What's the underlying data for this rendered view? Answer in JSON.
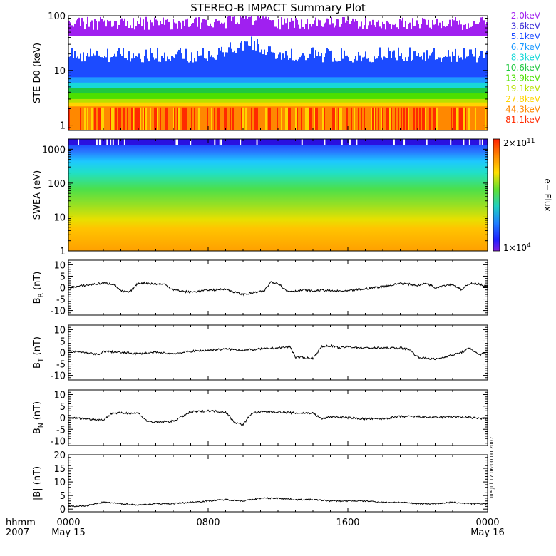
{
  "title": "STEREO-B IMPACT Summary Plot",
  "colors": {
    "ste": [
      "#a020f0",
      "#3a2ad6",
      "#1c4bff",
      "#1e9aff",
      "#18d8d8",
      "#20c840",
      "#4ce000",
      "#b8e000",
      "#ffd400",
      "#ff8800",
      "#ff2a00"
    ],
    "mag_line": "#000000"
  },
  "chart_data": [
    {
      "type": "heatmap",
      "panel": "ste",
      "ylabel": "STE D0 (keV)",
      "yscale": "log",
      "ylim": [
        0.8,
        100
      ],
      "yticks": [
        "100",
        "10",
        "1"
      ],
      "legend": [
        "2.0keV",
        "3.6keV",
        "5.1keV",
        "6.7keV",
        "8.3keV",
        "10.6keV",
        "13.9keV",
        "19.1keV",
        "27.8keV",
        "44.3keV",
        "81.1keV"
      ],
      "legend_position": "right"
    },
    {
      "type": "heatmap",
      "panel": "swea",
      "ylabel": "SWEA (eV)",
      "yscale": "log",
      "ylim": [
        1,
        2000
      ],
      "yticks": [
        "1000",
        "100",
        "10",
        "1"
      ],
      "colorbar": {
        "label": "e− Flux",
        "max_label": "2×10",
        "max_exp": "11",
        "min_label": "1×10",
        "min_exp": "4"
      }
    },
    {
      "type": "line",
      "panel": "br",
      "ylabel_main": "B",
      "ylabel_sub": "R",
      "ylabel_unit": " (nT)",
      "ylim": [
        -12,
        12
      ],
      "yticks": [
        10,
        5,
        0,
        -5,
        -10
      ],
      "x": [
        0,
        1,
        2,
        2.6,
        3,
        3.5,
        4,
        4.5,
        5,
        5.5,
        6,
        6.5,
        7,
        7.5,
        8,
        8.5,
        9,
        9.5,
        10,
        10.4,
        10.8,
        11.2,
        11.6,
        12,
        12.5,
        13,
        13.5,
        14,
        14.5,
        15,
        15.5,
        16,
        16.5,
        17,
        17.5,
        18,
        18.5,
        19,
        19.5,
        20,
        20.5,
        21,
        21.5,
        22,
        22.5,
        23,
        23.5,
        24
      ],
      "y": [
        0,
        1,
        2,
        1.5,
        -1.5,
        -2,
        2,
        2,
        1.5,
        1.5,
        -1,
        -1.5,
        -2,
        -1.5,
        -1,
        -1,
        -0.5,
        -2,
        -3,
        -2.5,
        -2,
        -1.5,
        2.5,
        2,
        -1.5,
        -1.5,
        -1,
        -1.5,
        -1,
        -1.5,
        -1.5,
        -1.5,
        -1,
        -0.5,
        0,
        0.5,
        1,
        2,
        1.5,
        1,
        2,
        0,
        1,
        1.5,
        -1,
        2,
        1.5,
        0.5
      ]
    },
    {
      "type": "line",
      "panel": "bt",
      "ylabel_main": "B",
      "ylabel_sub": "T",
      "ylabel_unit": " (nT)",
      "ylim": [
        -12,
        12
      ],
      "yticks": [
        10,
        5,
        0,
        -5,
        -10
      ],
      "x": [
        0,
        1,
        1.8,
        2,
        3,
        4,
        5,
        6,
        7,
        8,
        9,
        10,
        11,
        12,
        12.7,
        13,
        14,
        14.5,
        15,
        15.5,
        16,
        17,
        18,
        19,
        19.5,
        20,
        21,
        22,
        22.5,
        23,
        23.5,
        24
      ],
      "y": [
        0.5,
        0,
        -1,
        0.5,
        0,
        -0.5,
        0,
        -0.5,
        0.5,
        1,
        1.5,
        1,
        1.5,
        2,
        2.5,
        -2,
        -2.5,
        2.5,
        3,
        2,
        2.5,
        2,
        2,
        2,
        1.5,
        -2,
        -3,
        -1,
        0,
        2,
        -1,
        0
      ]
    },
    {
      "type": "line",
      "panel": "bn",
      "ylabel_main": "B",
      "ylabel_sub": "N",
      "ylabel_unit": " (nT)",
      "ylim": [
        -12,
        12
      ],
      "yticks": [
        10,
        5,
        0,
        -5,
        -10
      ],
      "x": [
        0,
        1,
        2,
        2.5,
        3,
        4,
        4.5,
        5,
        6,
        7,
        8,
        9,
        9.5,
        10,
        10.5,
        11,
        12,
        13,
        14,
        14.5,
        15,
        16,
        17,
        18,
        19,
        20,
        21,
        22,
        23,
        24
      ],
      "y": [
        0,
        -0.5,
        -1,
        2,
        2,
        2,
        -1.5,
        -2,
        -1.5,
        2.5,
        3,
        2.5,
        -2,
        -3,
        2,
        2.5,
        2.5,
        2,
        2,
        -0.5,
        0.5,
        0,
        -0.5,
        -0.5,
        0.5,
        0.5,
        0,
        0.5,
        0,
        -0.5
      ]
    },
    {
      "type": "line",
      "panel": "bmag",
      "ylabel_main": "|B|",
      "ylabel_sub": "",
      "ylabel_unit": " (nT)",
      "ylim": [
        -1,
        20
      ],
      "yticks": [
        20,
        15,
        10,
        5,
        0
      ],
      "x": [
        0,
        1,
        2,
        3,
        4,
        5,
        6,
        7,
        8,
        9,
        10,
        11,
        12,
        13,
        14,
        15,
        16,
        17,
        18,
        19,
        20,
        21,
        22,
        23,
        24
      ],
      "y": [
        1,
        1.2,
        2.5,
        2,
        1.5,
        2,
        2,
        2.5,
        3,
        3.5,
        3,
        4,
        4,
        3.5,
        3.5,
        3,
        3,
        3,
        2.5,
        2.5,
        2,
        2,
        2.5,
        2,
        2
      ]
    }
  ],
  "xaxis": {
    "range": [
      0,
      24
    ],
    "ticks": [
      {
        "hour": 0,
        "label": "0000",
        "sub": "May 15"
      },
      {
        "hour": 8,
        "label": "0800",
        "sub": ""
      },
      {
        "hour": 16,
        "label": "1600",
        "sub": ""
      },
      {
        "hour": 24,
        "label": "0000",
        "sub": "May 16"
      }
    ],
    "corner_top": "hhmm",
    "corner_bottom": "2007"
  },
  "stamp": "Tue Jul 17 06:00:00 2007"
}
